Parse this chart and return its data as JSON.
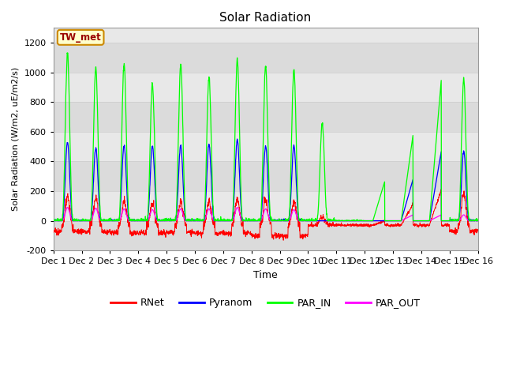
{
  "title": "Solar Radiation",
  "ylabel": "Solar Radiation (W/m2, uE/m2/s)",
  "xlabel": "Time",
  "ylim": [
    -200,
    1300
  ],
  "yticks": [
    -200,
    0,
    200,
    400,
    600,
    800,
    1000,
    1200
  ],
  "n_days": 15,
  "xtick_labels": [
    "Dec 1",
    "Dec 2",
    "Dec 3",
    "Dec 4",
    "Dec 5",
    "Dec 6",
    "Dec 7",
    "Dec 8",
    "Dec 9",
    "Dec 10",
    "Dec 11",
    "Dec 12",
    "Dec 13",
    "Dec 14",
    "Dec 15",
    "Dec 16"
  ],
  "legend_entries": [
    "RNet",
    "Pyranom",
    "PAR_IN",
    "PAR_OUT"
  ],
  "legend_colors": [
    "red",
    "blue",
    "lime",
    "magenta"
  ],
  "annotation_text": "TW_met",
  "annotation_bg": "#ffffcc",
  "annotation_border": "#cc8800",
  "grid_color": "#cccccc",
  "plot_bg": "#e8e8e8",
  "band_color": "#d8d8d8",
  "day_peaks": {
    "par_in": [
      1130,
      1025,
      1055,
      920,
      1055,
      970,
      1085,
      1040,
      1020,
      655,
      0,
      0,
      0,
      0,
      955
    ],
    "pyranom": [
      530,
      490,
      505,
      505,
      505,
      515,
      545,
      505,
      505,
      0,
      0,
      0,
      0,
      0,
      470
    ],
    "rnet": [
      200,
      185,
      165,
      155,
      155,
      165,
      175,
      165,
      160,
      0,
      0,
      0,
      0,
      0,
      210
    ],
    "par_out": [
      90,
      85,
      80,
      75,
      80,
      80,
      90,
      80,
      75,
      0,
      0,
      0,
      0,
      0,
      40
    ],
    "night_rnet": [
      -70,
      -75,
      -80,
      -80,
      -80,
      -85,
      -85,
      -100,
      -100,
      -30,
      -30,
      -30,
      -30,
      -30,
      -70
    ]
  },
  "ramp_days": [
    10,
    11,
    12,
    13,
    14
  ],
  "ramp_par_in_end": [
    0,
    0,
    265,
    580,
    955
  ],
  "ramp_pyranom_end": [
    0,
    0,
    0,
    280,
    470
  ],
  "ramp_rnet_end": [
    0,
    0,
    0,
    115,
    210
  ],
  "ramp_par_out_end": [
    0,
    0,
    0,
    40,
    40
  ]
}
